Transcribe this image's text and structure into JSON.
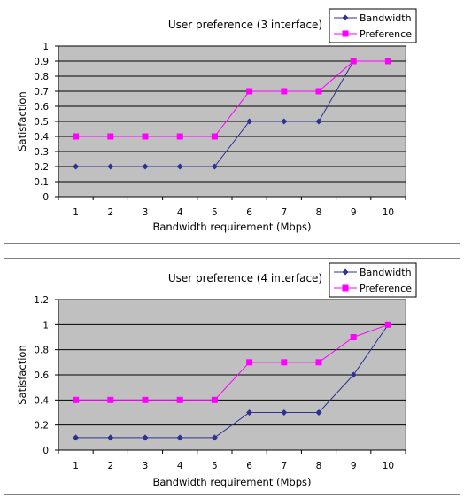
{
  "chart_data": [
    {
      "type": "line",
      "title": "User preference (3 interface)",
      "xlabel": "Bandwidth requirement (Mbps)",
      "ylabel": "Satisfaction",
      "categories": [
        "1",
        "2",
        "3",
        "4",
        "5",
        "6",
        "7",
        "8",
        "9",
        "10"
      ],
      "ylim": [
        0,
        1
      ],
      "yticks": [
        "0",
        "0.1",
        "0.2",
        "0.3",
        "0.4",
        "0.5",
        "0.6",
        "0.7",
        "0.8",
        "0.9",
        "1"
      ],
      "grid": true,
      "legend_position": "top-right",
      "series": [
        {
          "name": "Bandwidth",
          "color": "#2e3192",
          "marker": "diamond",
          "values": [
            0.2,
            0.2,
            0.2,
            0.2,
            0.2,
            0.5,
            0.5,
            0.5,
            0.9,
            0.9
          ]
        },
        {
          "name": "Preference",
          "color": "#ff00ff",
          "marker": "square",
          "values": [
            0.4,
            0.4,
            0.4,
            0.4,
            0.4,
            0.7,
            0.7,
            0.7,
            0.9,
            0.9
          ]
        }
      ]
    },
    {
      "type": "line",
      "title": "User preference (4 interface)",
      "xlabel": "Bandwidth requirement (Mbps)",
      "ylabel": "Satisfaction",
      "categories": [
        "1",
        "2",
        "3",
        "4",
        "5",
        "6",
        "7",
        "8",
        "9",
        "10"
      ],
      "ylim": [
        0,
        1.2
      ],
      "yticks": [
        "0",
        "0.2",
        "0.4",
        "0.6",
        "0.8",
        "1",
        "1.2"
      ],
      "grid": true,
      "legend_position": "top-right",
      "series": [
        {
          "name": "Bandwidth",
          "color": "#2e3192",
          "marker": "diamond",
          "values": [
            0.1,
            0.1,
            0.1,
            0.1,
            0.1,
            0.3,
            0.3,
            0.3,
            0.6,
            1.0
          ]
        },
        {
          "name": "Preference",
          "color": "#ff00ff",
          "marker": "square",
          "values": [
            0.4,
            0.4,
            0.4,
            0.4,
            0.4,
            0.7,
            0.7,
            0.7,
            0.9,
            1.0
          ]
        }
      ]
    }
  ]
}
